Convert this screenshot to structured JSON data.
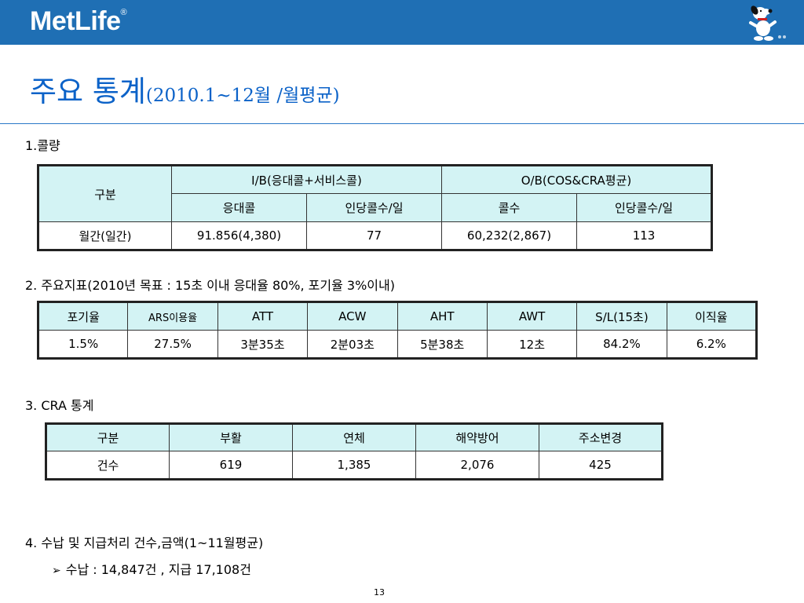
{
  "header": {
    "logo_text": "MetLife",
    "logo_mark": "®",
    "mascot_icon": "snoopy-mascot-icon",
    "bar_color": "#1f6fb4"
  },
  "title": {
    "main": "주요 통계",
    "sub": "(2010.1~12월 /월평균)",
    "color": "#0b62c8"
  },
  "section1": {
    "heading": "1.콜량",
    "header_col": "구분",
    "group_ib": "I/B(응대콜+서비스콜)",
    "group_ob": "O/B(COS&CRA평균)",
    "sub_headers": [
      "응대콜",
      "인당콜수/일",
      "콜수",
      "인당콜수/일"
    ],
    "row_label": "월간(일간)",
    "row_values": [
      "91.856(4,380)",
      "77",
      "60,232(2,867)",
      "113"
    ]
  },
  "section2": {
    "heading": "2. 주요지표(2010년 목표 : 15초 이내 응대율 80%, 포기율 3%이내)",
    "headers": [
      "포기율",
      "ARS이용율",
      "ATT",
      "ACW",
      "AHT",
      "AWT",
      "S/L(15초)",
      "이직율"
    ],
    "values": [
      "1.5%",
      "27.5%",
      "3분35초",
      "2분03초",
      "5분38초",
      "12초",
      "84.2%",
      "6.2%"
    ]
  },
  "section3": {
    "heading": "3. CRA 통계",
    "headers": [
      "구분",
      "부활",
      "연체",
      "해약방어",
      "주소변경"
    ],
    "values": [
      "건수",
      "619",
      "1,385",
      "2,076",
      "425"
    ]
  },
  "section4": {
    "heading": "4. 수납 및 지급처리 건수,금액(1~11월평균)",
    "bullet_icon": "arrow-bullet-icon",
    "bullet_text": "수납 : 14,847건 ,  지급 17,108건"
  },
  "footer": {
    "page_number": "13"
  },
  "colors": {
    "table_header_bg": "#d3f3f4"
  }
}
